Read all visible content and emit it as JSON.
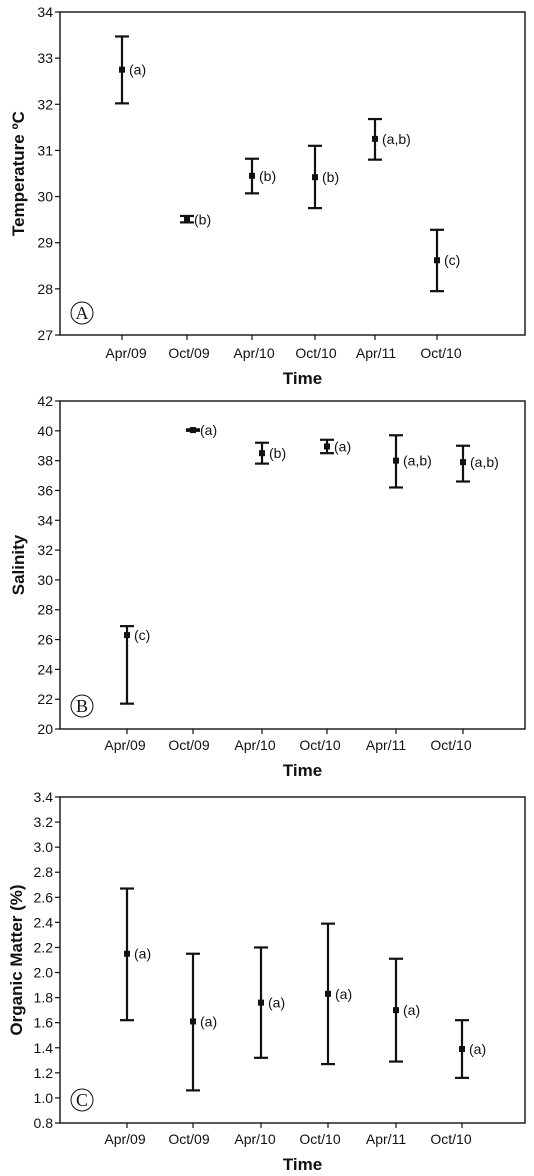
{
  "chart_data": [
    {
      "type": "errorbar",
      "panel_label": "A",
      "xlabel": "Time",
      "ylabel": "Temperature ºC",
      "ylim": [
        27,
        34
      ],
      "yticks": [
        27,
        28,
        29,
        30,
        31,
        32,
        33,
        34
      ],
      "categories": [
        "Apr/09",
        "Oct/09",
        "Apr/10",
        "Oct/10",
        "Apr/11",
        "Oct/10"
      ],
      "values": [
        32.75,
        29.5,
        30.45,
        30.42,
        31.25,
        28.62
      ],
      "lower": [
        32.02,
        29.44,
        30.07,
        29.75,
        30.8,
        27.95
      ],
      "upper": [
        33.47,
        29.58,
        30.82,
        31.1,
        31.68,
        29.28
      ],
      "annotations": [
        "(a)",
        "(b)",
        "(b)",
        "(b)",
        "(a,b)",
        "(c)"
      ]
    },
    {
      "type": "errorbar",
      "panel_label": "B",
      "xlabel": "Time",
      "ylabel": "Salinity",
      "ylim": [
        20,
        42
      ],
      "yticks": [
        20,
        22,
        24,
        26,
        28,
        30,
        32,
        34,
        36,
        38,
        40,
        42
      ],
      "categories": [
        "Apr/09",
        "Oct/09",
        "Apr/10",
        "Oct/10",
        "Apr/11",
        "Oct/10"
      ],
      "values": [
        26.3,
        40.05,
        38.5,
        38.95,
        38.0,
        37.9
      ],
      "lower": [
        21.7,
        40.0,
        37.8,
        38.5,
        36.2,
        36.6
      ],
      "upper": [
        26.9,
        40.1,
        39.2,
        39.4,
        39.7,
        39.0
      ],
      "annotations": [
        "(c)",
        "(a)",
        "(b)",
        "(a)",
        "(a,b)",
        "(a,b)"
      ]
    },
    {
      "type": "errorbar",
      "panel_label": "C",
      "xlabel": "Time",
      "ylabel": "Organic Matter (%)",
      "ylim": [
        0.8,
        3.4
      ],
      "yticks": [
        0.8,
        1.0,
        1.2,
        1.4,
        1.6,
        1.8,
        2.0,
        2.2,
        2.4,
        2.6,
        2.8,
        3.0,
        3.2,
        3.4
      ],
      "categories": [
        "Apr/09",
        "Oct/09",
        "Apr/10",
        "Oct/10",
        "Apr/11",
        "Oct/10"
      ],
      "values": [
        2.15,
        1.61,
        1.76,
        1.83,
        1.7,
        1.39
      ],
      "lower": [
        1.62,
        1.06,
        1.32,
        1.27,
        1.29,
        1.16
      ],
      "upper": [
        2.67,
        2.15,
        2.2,
        2.39,
        2.11,
        1.62
      ],
      "annotations": [
        "(a)",
        "(a)",
        "(a)",
        "(a)",
        "(a)",
        "(a)"
      ]
    }
  ]
}
